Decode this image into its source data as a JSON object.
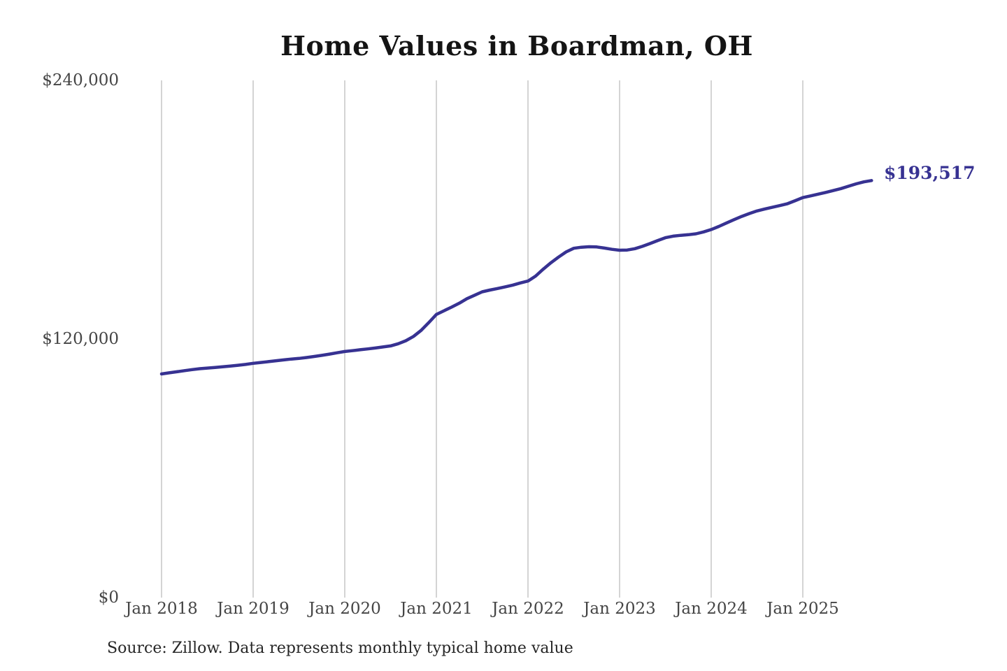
{
  "page": {
    "background_color": "#ffffff"
  },
  "header": {
    "title": "Home Values in Boardman, OH"
  },
  "footer": {
    "source_note": "Source: Zillow. Data represents monthly typical home value"
  },
  "chart_data": {
    "type": "line",
    "title": "Home Values in Boardman, OH",
    "xlabel": "",
    "ylabel": "",
    "ylim": [
      0,
      240000
    ],
    "grid": "vertical-only",
    "legend": "none",
    "line_color": "#373292",
    "gridline_color": "#bcbcbc",
    "axis_text_color": "#454545",
    "end_label": "$193,517",
    "last_value": 193517,
    "y_ticks": [
      {
        "label": "$240,000",
        "value": 240000
      },
      {
        "label": "$120,000",
        "value": 120000
      },
      {
        "label": "$0",
        "value": 0
      }
    ],
    "x_tick_labels": [
      "Jan 2018",
      "Jan 2019",
      "Jan 2020",
      "Jan 2021",
      "Jan 2022",
      "Jan 2023",
      "Jan 2024",
      "Jan 2025"
    ],
    "x": [
      "Jan 2018",
      "Feb 2018",
      "Mar 2018",
      "Apr 2018",
      "May 2018",
      "Jun 2018",
      "Jul 2018",
      "Aug 2018",
      "Sep 2018",
      "Oct 2018",
      "Nov 2018",
      "Dec 2018",
      "Jan 2019",
      "Feb 2019",
      "Mar 2019",
      "Apr 2019",
      "May 2019",
      "Jun 2019",
      "Jul 2019",
      "Aug 2019",
      "Sep 2019",
      "Oct 2019",
      "Nov 2019",
      "Dec 2019",
      "Jan 2020",
      "Feb 2020",
      "Mar 2020",
      "Apr 2020",
      "May 2020",
      "Jun 2020",
      "Jul 2020",
      "Aug 2020",
      "Sep 2020",
      "Oct 2020",
      "Nov 2020",
      "Dec 2020",
      "Jan 2021",
      "Feb 2021",
      "Mar 2021",
      "Apr 2021",
      "May 2021",
      "Jun 2021",
      "Jul 2021",
      "Aug 2021",
      "Sep 2021",
      "Oct 2021",
      "Nov 2021",
      "Dec 2021",
      "Jan 2022",
      "Feb 2022",
      "Mar 2022",
      "Apr 2022",
      "May 2022",
      "Jun 2022",
      "Jul 2022",
      "Aug 2022",
      "Sep 2022",
      "Oct 2022",
      "Nov 2022",
      "Dec 2022",
      "Jan 2023",
      "Feb 2023",
      "Mar 2023",
      "Apr 2023",
      "May 2023",
      "Jun 2023",
      "Jul 2023",
      "Aug 2023",
      "Sep 2023",
      "Oct 2023",
      "Nov 2023",
      "Dec 2023",
      "Jan 2024",
      "Feb 2024",
      "Mar 2024",
      "Apr 2024",
      "May 2024",
      "Jun 2024",
      "Jul 2024",
      "Aug 2024",
      "Sep 2024",
      "Oct 2024",
      "Nov 2024",
      "Dec 2024",
      "Jan 2025",
      "Feb 2025",
      "Mar 2025",
      "Apr 2025",
      "May 2025",
      "Jun 2025",
      "Jul 2025",
      "Aug 2025",
      "Sep 2025",
      "Oct 2025"
    ],
    "series": [
      {
        "name": "Monthly typical home value",
        "values": [
          103800,
          104300,
          104800,
          105300,
          105800,
          106200,
          106500,
          106800,
          107100,
          107400,
          107800,
          108200,
          108700,
          109100,
          109500,
          109900,
          110300,
          110700,
          111000,
          111400,
          111900,
          112400,
          113000,
          113600,
          114200,
          114600,
          115000,
          115400,
          115800,
          116300,
          116800,
          117800,
          119200,
          121200,
          124000,
          127600,
          131400,
          133100,
          134800,
          136600,
          138700,
          140300,
          141900,
          142700,
          143400,
          144200,
          145000,
          146000,
          146900,
          149200,
          152400,
          155400,
          158000,
          160400,
          162100,
          162600,
          162800,
          162700,
          162200,
          161600,
          161200,
          161300,
          161900,
          163000,
          164300,
          165700,
          167000,
          167700,
          168100,
          168400,
          168800,
          169700,
          170800,
          172200,
          173800,
          175400,
          176900,
          178200,
          179400,
          180300,
          181100,
          181900,
          182800,
          184200,
          185600,
          186400,
          187200,
          188000,
          188900,
          189800,
          190900,
          192000,
          192900,
          193517
        ]
      }
    ]
  }
}
